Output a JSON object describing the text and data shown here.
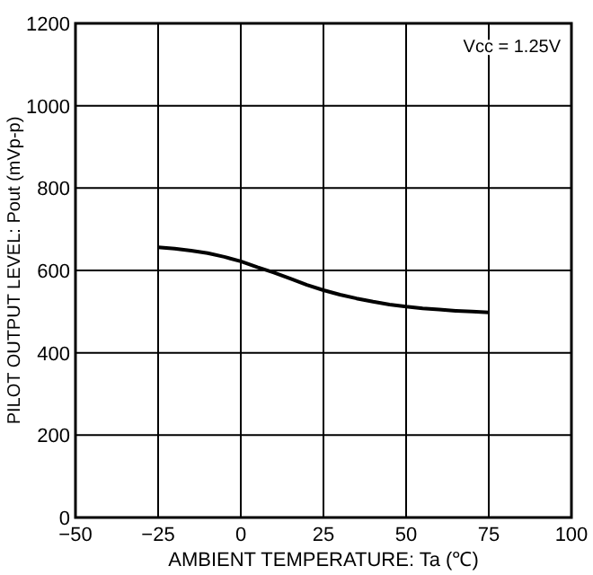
{
  "chart_data": {
    "type": "line",
    "xlabel": "AMBIENT TEMPERATURE: Ta (℃)",
    "ylabel": "PILOT OUTPUT LEVEL: Pout (mVp-p)",
    "annotations": [
      "Vcc = 1.25V"
    ],
    "x": [
      -25,
      -20,
      -15,
      -10,
      -5,
      0,
      5,
      10,
      15,
      20,
      25,
      30,
      35,
      40,
      45,
      50,
      55,
      60,
      65,
      70,
      75
    ],
    "series": [
      {
        "color": "#000000",
        "values": [
          656,
          653,
          648,
          642,
          633,
          622,
          608,
          595,
          580,
          565,
          552,
          541,
          532,
          524,
          517,
          512,
          508,
          505,
          502,
          500,
          498
        ]
      }
    ],
    "xlim": [
      -50,
      100
    ],
    "xticks": [
      -50,
      -25,
      0,
      25,
      50,
      75,
      100
    ],
    "ylim": [
      0,
      1200
    ],
    "yticks": [
      0,
      200,
      400,
      600,
      800,
      1000,
      1200
    ],
    "grid": true,
    "marker": "none",
    "line_style": "solid"
  }
}
